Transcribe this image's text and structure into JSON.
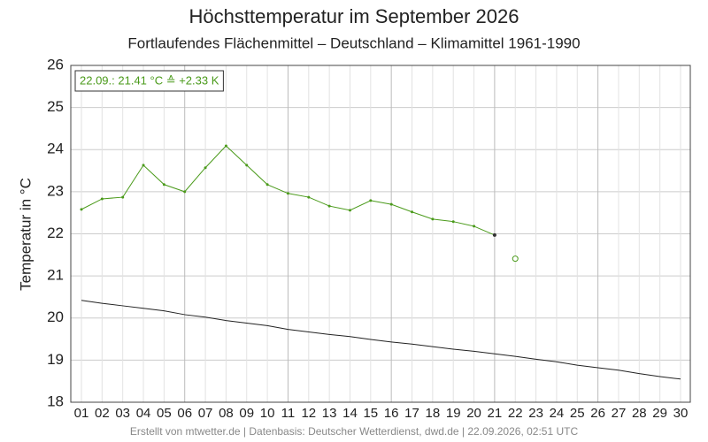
{
  "chart_data": {
    "type": "line",
    "title": "Höchsttemperatur im September 2026",
    "subtitle": "Fortlaufendes Flächenmittel – Deutschland – Klimamittel 1961-1990",
    "y_label": "Temperatur in °C",
    "annotation": "22.09.: 21.41 °C ≙ +2.33 K",
    "footer": "Erstellt von mtwetter.de | Datenbasis: Deutscher Wetterdienst, dwd.de | 22.09.2026, 02:51 UTC",
    "categories": [
      "01",
      "02",
      "03",
      "04",
      "05",
      "06",
      "07",
      "08",
      "09",
      "10",
      "11",
      "12",
      "13",
      "14",
      "15",
      "16",
      "17",
      "18",
      "19",
      "20",
      "21",
      "22",
      "23",
      "24",
      "25",
      "26",
      "27",
      "28",
      "29",
      "30"
    ],
    "series": [
      {
        "color": "#222222",
        "values": [
          20.42,
          20.35,
          20.29,
          20.23,
          20.17,
          20.08,
          20.02,
          19.94,
          19.88,
          19.82,
          19.73,
          19.67,
          19.61,
          19.56,
          19.49,
          19.43,
          19.38,
          19.32,
          19.26,
          19.21,
          19.15,
          19.09,
          19.02,
          18.96,
          18.88,
          18.82,
          18.76,
          18.68,
          18.61,
          18.55
        ],
        "markers": false
      },
      {
        "color": "#4a9a1a",
        "values": [
          22.58,
          22.83,
          22.87,
          23.63,
          23.17,
          23.0,
          23.57,
          24.09,
          23.63,
          23.17,
          22.96,
          22.87,
          22.66,
          22.56,
          22.79,
          22.7,
          22.52,
          22.35,
          22.29,
          22.18,
          21.97,
          null,
          null,
          null,
          null,
          null,
          null,
          null,
          null,
          null
        ],
        "markers": true
      },
      {
        "color": "#4a9a1a",
        "values": [
          null,
          null,
          null,
          null,
          null,
          null,
          null,
          null,
          null,
          null,
          null,
          null,
          null,
          null,
          null,
          null,
          null,
          null,
          null,
          null,
          null,
          21.41,
          null,
          null,
          null,
          null,
          null,
          null,
          null,
          null
        ],
        "markers": "hollow"
      }
    ],
    "ylim": [
      18,
      26
    ],
    "yticks": [
      18,
      19,
      20,
      21,
      22,
      23,
      24,
      25,
      26
    ],
    "grid": true
  }
}
